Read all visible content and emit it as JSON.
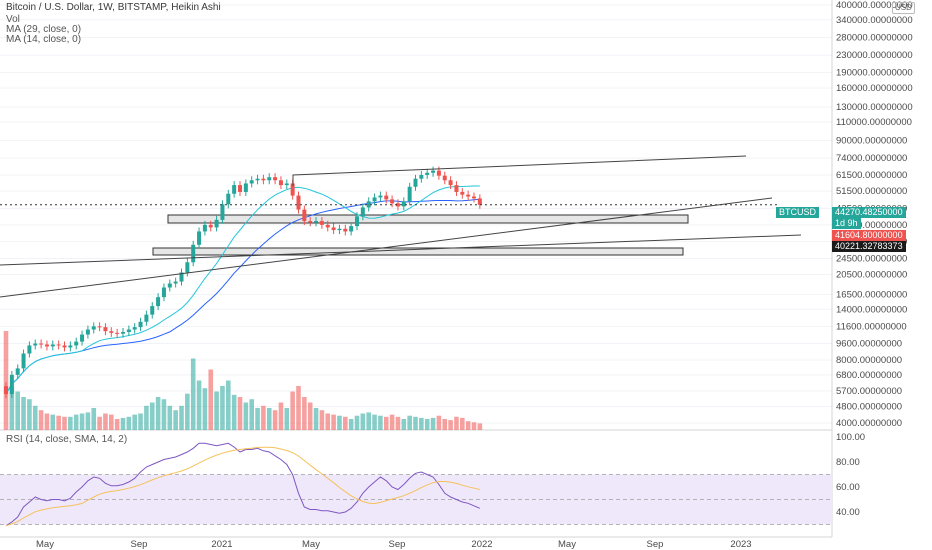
{
  "header": {
    "title": "Bitcoin / U.S. Dollar, 1W, BITSTAMP, Heikin Ashi",
    "vol": "Vol",
    "ma29": "MA (29, close, 0)",
    "ma14": "MA (14, close, 0)",
    "rsi": "RSI (14, close, SMA, 14, 2)",
    "currency": "USD"
  },
  "colors": {
    "up": "#26a69a",
    "down": "#ef5350",
    "ma29": "#2962ff",
    "ma14": "#26c6da",
    "rsi": "#7e57c2",
    "rsi_sma": "#f5c15b",
    "rsi_band": "#efe8fb"
  },
  "chart_data": {
    "type": "candlestick",
    "price_axis": {
      "scale": "log",
      "ticks": [
        4000,
        4800,
        5700,
        6800,
        8000,
        9600,
        11600,
        14000,
        16500,
        20500,
        24500,
        29500,
        35500,
        42500,
        51500,
        61500,
        74000,
        90000,
        110000,
        130000,
        160000,
        190000,
        230000,
        280000,
        340000,
        400000
      ],
      "tick_labels": [
        "4000.00000000",
        "4800.00000000",
        "5700.00000000",
        "6800.00000000",
        "8000.00000000",
        "9600.00000000",
        "11600.00000000",
        "14000.00000000",
        "16500.00000000",
        "20500.00000000",
        "24500.00000000",
        "29500.00000000",
        "35500.00000000",
        "42500.00000000",
        "51500.00000000",
        "61500.00000000",
        "74000.00000000",
        "90000.00000000",
        "110000.00000000",
        "130000.00000000",
        "160000.00000000",
        "190000.00000000",
        "230000.00000000",
        "280000.00000000",
        "340000.00000000",
        "400000.00000000"
      ]
    },
    "rsi_axis": {
      "ticks": [
        40,
        60,
        80,
        100
      ],
      "tick_labels": [
        "40.00",
        "60.00",
        "80.00",
        "100.00"
      ],
      "band": [
        30,
        70
      ]
    },
    "time_axis": [
      "May",
      "Sep",
      "2021",
      "May",
      "Sep",
      "2022",
      "May",
      "Sep",
      "2023"
    ],
    "candles": [
      {
        "o": 6000,
        "c": 5500
      },
      {
        "o": 5500,
        "c": 6800
      },
      {
        "o": 6800,
        "c": 7300
      },
      {
        "o": 7300,
        "c": 8600
      },
      {
        "o": 8600,
        "c": 9400
      },
      {
        "o": 9400,
        "c": 9600
      },
      {
        "o": 9600,
        "c": 9500
      },
      {
        "o": 9500,
        "c": 9300
      },
      {
        "o": 9300,
        "c": 9500
      },
      {
        "o": 9500,
        "c": 9400
      },
      {
        "o": 9400,
        "c": 9200
      },
      {
        "o": 9200,
        "c": 9400
      },
      {
        "o": 9400,
        "c": 9800
      },
      {
        "o": 9800,
        "c": 10600
      },
      {
        "o": 10600,
        "c": 11200
      },
      {
        "o": 11200,
        "c": 11600
      },
      {
        "o": 11600,
        "c": 11500
      },
      {
        "o": 11500,
        "c": 11000
      },
      {
        "o": 11000,
        "c": 10800
      },
      {
        "o": 10800,
        "c": 10700
      },
      {
        "o": 10700,
        "c": 10900
      },
      {
        "o": 10900,
        "c": 11200
      },
      {
        "o": 11200,
        "c": 11500
      },
      {
        "o": 11500,
        "c": 12200
      },
      {
        "o": 12200,
        "c": 13200
      },
      {
        "o": 13200,
        "c": 14500
      },
      {
        "o": 14500,
        "c": 16000
      },
      {
        "o": 16000,
        "c": 17800
      },
      {
        "o": 17800,
        "c": 18600
      },
      {
        "o": 18600,
        "c": 19000
      },
      {
        "o": 19000,
        "c": 21000
      },
      {
        "o": 21000,
        "c": 23500
      },
      {
        "o": 23500,
        "c": 28500
      },
      {
        "o": 28500,
        "c": 33000
      },
      {
        "o": 33000,
        "c": 35500
      },
      {
        "o": 35500,
        "c": 34500
      },
      {
        "o": 34500,
        "c": 37500
      },
      {
        "o": 37500,
        "c": 44500
      },
      {
        "o": 44500,
        "c": 50000
      },
      {
        "o": 50000,
        "c": 55000
      },
      {
        "o": 55000,
        "c": 51000
      },
      {
        "o": 51000,
        "c": 56000
      },
      {
        "o": 56000,
        "c": 58000
      },
      {
        "o": 58000,
        "c": 59000
      },
      {
        "o": 59000,
        "c": 58000
      },
      {
        "o": 58000,
        "c": 60000
      },
      {
        "o": 60000,
        "c": 58000
      },
      {
        "o": 58000,
        "c": 55000
      },
      {
        "o": 55000,
        "c": 56000
      },
      {
        "o": 56000,
        "c": 49000
      },
      {
        "o": 49000,
        "c": 42000
      },
      {
        "o": 42000,
        "c": 37000
      },
      {
        "o": 37000,
        "c": 36500
      },
      {
        "o": 36500,
        "c": 37000
      },
      {
        "o": 37000,
        "c": 35500
      },
      {
        "o": 35500,
        "c": 34500
      },
      {
        "o": 34500,
        "c": 33500
      },
      {
        "o": 33500,
        "c": 34000
      },
      {
        "o": 34000,
        "c": 33000
      },
      {
        "o": 33000,
        "c": 35000
      },
      {
        "o": 35000,
        "c": 39000
      },
      {
        "o": 39000,
        "c": 43000
      },
      {
        "o": 43000,
        "c": 46000
      },
      {
        "o": 46000,
        "c": 48000
      },
      {
        "o": 48000,
        "c": 49000
      },
      {
        "o": 49000,
        "c": 47000
      },
      {
        "o": 47000,
        "c": 45000
      },
      {
        "o": 45000,
        "c": 43500
      },
      {
        "o": 43500,
        "c": 46000
      },
      {
        "o": 46000,
        "c": 54000
      },
      {
        "o": 54000,
        "c": 59000
      },
      {
        "o": 59000,
        "c": 61500
      },
      {
        "o": 61500,
        "c": 63000
      },
      {
        "o": 63000,
        "c": 64500
      },
      {
        "o": 64500,
        "c": 61000
      },
      {
        "o": 61000,
        "c": 58000
      },
      {
        "o": 58000,
        "c": 55000
      },
      {
        "o": 55000,
        "c": 51000
      },
      {
        "o": 51000,
        "c": 49500
      },
      {
        "o": 49500,
        "c": 48500
      },
      {
        "o": 48500,
        "c": 47500
      },
      {
        "o": 47500,
        "c": 44270
      }
    ],
    "volume": [
      0.9,
      0.4,
      0.35,
      0.3,
      0.28,
      0.22,
      0.18,
      0.15,
      0.14,
      0.13,
      0.12,
      0.12,
      0.14,
      0.15,
      0.16,
      0.2,
      0.12,
      0.15,
      0.14,
      0.1,
      0.11,
      0.12,
      0.14,
      0.15,
      0.22,
      0.25,
      0.3,
      0.28,
      0.22,
      0.18,
      0.22,
      0.33,
      0.65,
      0.45,
      0.38,
      0.55,
      0.35,
      0.4,
      0.45,
      0.32,
      0.3,
      0.25,
      0.28,
      0.2,
      0.22,
      0.2,
      0.18,
      0.25,
      0.2,
      0.35,
      0.4,
      0.3,
      0.25,
      0.2,
      0.18,
      0.15,
      0.14,
      0.13,
      0.12,
      0.1,
      0.13,
      0.15,
      0.16,
      0.14,
      0.13,
      0.12,
      0.14,
      0.12,
      0.1,
      0.13,
      0.12,
      0.11,
      0.1,
      0.11,
      0.13,
      0.1,
      0.09,
      0.12,
      0.11,
      0.08,
      0.07,
      0.06
    ],
    "rsi": [
      29,
      32,
      36,
      44,
      48,
      52,
      50,
      49,
      50,
      50,
      49,
      51,
      56,
      60,
      65,
      68,
      67,
      63,
      61,
      61,
      62,
      64,
      67,
      72,
      76,
      78,
      80,
      82,
      83,
      84,
      86,
      88,
      91,
      95,
      95,
      94,
      93,
      94,
      95,
      92,
      88,
      90,
      90,
      91,
      89,
      88,
      85,
      82,
      78,
      70,
      55,
      44,
      42,
      42,
      41,
      41,
      40,
      39,
      40,
      43,
      48,
      55,
      60,
      64,
      68,
      65,
      60,
      58,
      62,
      67,
      71,
      72,
      70,
      68,
      62,
      55,
      52,
      50,
      48,
      47,
      45,
      43
    ],
    "last_price": "44270.48250000",
    "last_price_tag": "BTCUSD",
    "countdown": "1d 9h",
    "price_label_2": "41604.80000000",
    "price_label_3": "40221.32783373"
  }
}
